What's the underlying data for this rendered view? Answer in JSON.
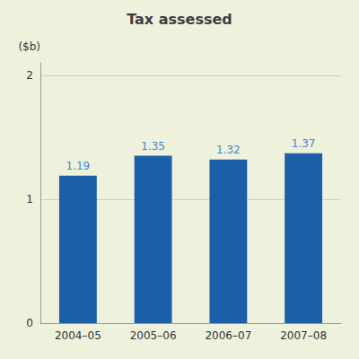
{
  "chart_data": {
    "type": "bar",
    "title": "Tax assessed",
    "ylabel": "($b)",
    "categories": [
      "2004–05",
      "2005–06",
      "2006–07",
      "2007–08"
    ],
    "values": [
      1.19,
      1.35,
      1.32,
      1.37
    ],
    "color": "#1a5fa8",
    "ylim": [
      0,
      2.1
    ],
    "yticks": [
      0,
      1,
      2
    ],
    "grid": true,
    "data_labels": true
  }
}
